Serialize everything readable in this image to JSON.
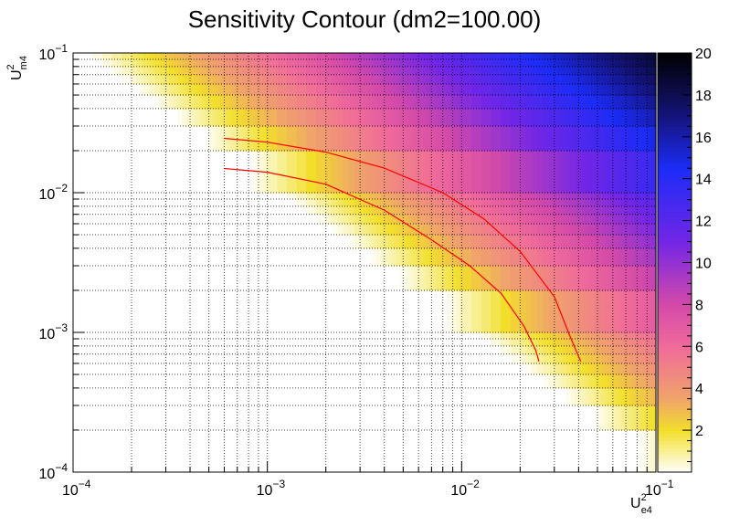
{
  "chart_data": {
    "type": "heatmap",
    "title": "Sensitivity Contour (dm2=100.00)",
    "xlabel": {
      "base": "U",
      "sup": "2",
      "sub": "e4"
    },
    "ylabel": {
      "base": "U",
      "sup": "2",
      "sub": "m4"
    },
    "x_scale": "log",
    "y_scale": "log",
    "xlim": [
      0.0001,
      0.1
    ],
    "ylim": [
      0.0001,
      0.1
    ],
    "grid": true,
    "x_major_ticks": [
      {
        "value": 0.0001,
        "base": "10",
        "exp": "−4"
      },
      {
        "value": 0.001,
        "base": "10",
        "exp": "−3"
      },
      {
        "value": 0.01,
        "base": "10",
        "exp": "−2"
      },
      {
        "value": 0.1,
        "base": "10",
        "exp": "−1"
      }
    ],
    "y_major_ticks": [
      {
        "value": 0.0001,
        "base": "10",
        "exp": "−4"
      },
      {
        "value": 0.001,
        "base": "10",
        "exp": "−3"
      },
      {
        "value": 0.01,
        "base": "10",
        "exp": "−2"
      },
      {
        "value": 0.1,
        "base": "10",
        "exp": "−1"
      }
    ],
    "colorbar": {
      "range": [
        0,
        20
      ],
      "ticks": [
        "2",
        "4",
        "6",
        "8",
        "10",
        "12",
        "14",
        "16",
        "18",
        "20"
      ],
      "stops": [
        "#ffffff",
        "#f2df2a",
        "#f0a46a",
        "#f06b9a",
        "#d44aa9",
        "#7326e6",
        "#1c2cf7",
        "#14147a",
        "#000000"
      ],
      "stop_values": [
        0,
        2,
        3.5,
        6,
        8,
        11,
        14.5,
        17,
        20
      ]
    },
    "heatmap_model": {
      "description_free": true,
      "isolines": [
        {
          "value": 6,
          "v": 0.01
        },
        {
          "value": 14,
          "v": 0.042
        }
      ]
    },
    "contours": [
      {
        "color": "#ff0000",
        "points": [
          [
            0.0006,
            0.0245
          ],
          [
            0.001,
            0.023
          ],
          [
            0.002,
            0.0195
          ],
          [
            0.004,
            0.015
          ],
          [
            0.008,
            0.01
          ],
          [
            0.013,
            0.0065
          ],
          [
            0.02,
            0.0038
          ],
          [
            0.03,
            0.0018
          ],
          [
            0.036,
            0.00095
          ],
          [
            0.041,
            0.00062
          ]
        ]
      },
      {
        "color": "#ff0000",
        "points": [
          [
            0.0006,
            0.0149
          ],
          [
            0.001,
            0.014
          ],
          [
            0.002,
            0.0115
          ],
          [
            0.004,
            0.0075
          ],
          [
            0.007,
            0.0046
          ],
          [
            0.011,
            0.003
          ],
          [
            0.016,
            0.0019
          ],
          [
            0.021,
            0.0011
          ],
          [
            0.024,
            0.00075
          ],
          [
            0.025,
            0.00062
          ]
        ]
      }
    ]
  }
}
